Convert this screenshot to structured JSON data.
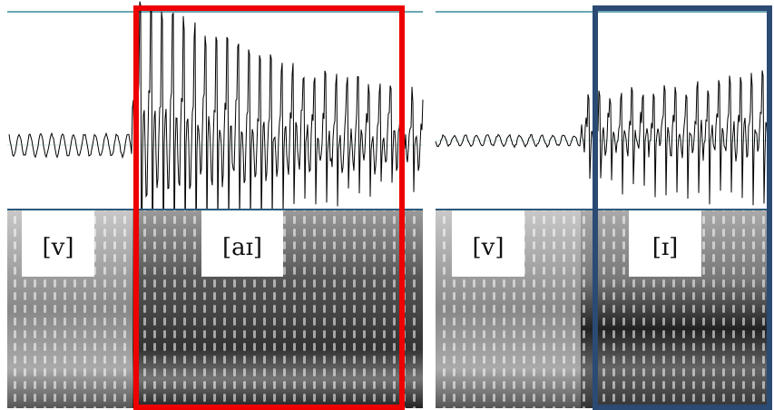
{
  "panels": [
    {
      "labels": [
        "[v]",
        "[aɪ]"
      ]
    },
    {
      "labels": [
        "[v]",
        "[ɪ]"
      ]
    }
  ]
}
